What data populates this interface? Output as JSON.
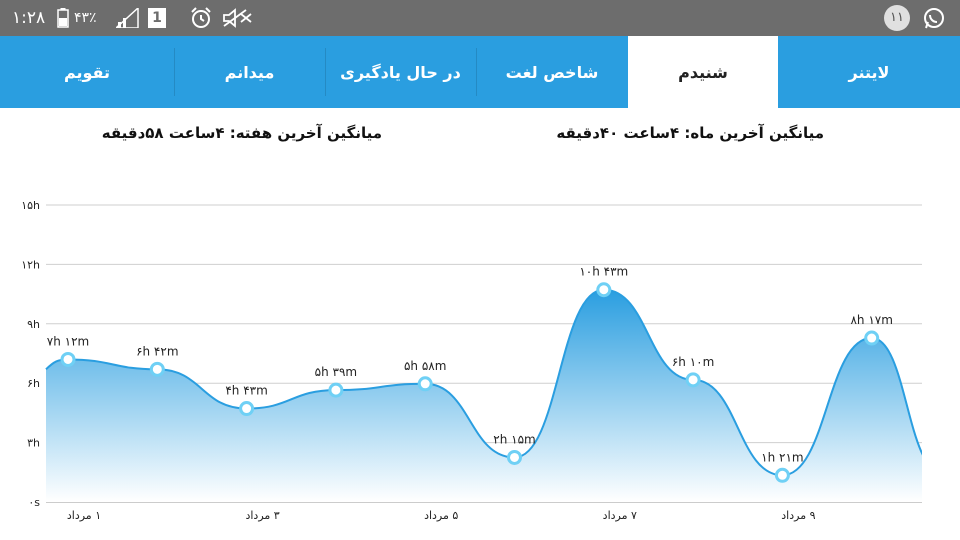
{
  "status_bar": {
    "time": "۱:۲۸",
    "battery": "۴۳٪",
    "sim": "1",
    "notification_count": "۱۱",
    "icons": [
      "battery-icon",
      "signal-icon",
      "sim-icon",
      "alarm-icon",
      "mute-icon",
      "notification-count-badge",
      "whatsapp-icon"
    ]
  },
  "tabs": [
    {
      "label": "لایتنر",
      "active": false
    },
    {
      "label": "شنیدم",
      "active": true
    },
    {
      "label": "شاخص لغت",
      "active": false
    },
    {
      "label": "در حال یادگیری",
      "active": false
    },
    {
      "label": "میدانم",
      "active": false
    },
    {
      "label": "تقویم",
      "active": false
    }
  ],
  "colors": {
    "tab_bar": "#2a9ee0",
    "accent": "#2a9ee0",
    "status_bar": "#6d6d6d"
  },
  "stats": {
    "month_avg": "میانگین آخرین ماه: ۴ساعت  ۴۰دقیقه",
    "week_avg": "میانگین آخرین هفته: ۴ساعت  ۵۸دقیقه"
  },
  "chart_data": {
    "type": "area",
    "title": "",
    "xlabel": "",
    "ylabel": "",
    "ylim": [
      0,
      15
    ],
    "y_ticks": [
      {
        "value": 0,
        "label": "۰s"
      },
      {
        "value": 3,
        "label": "۳h"
      },
      {
        "value": 6,
        "label": "۶h"
      },
      {
        "value": 9,
        "label": "۹h"
      },
      {
        "value": 12,
        "label": "۱۲h"
      },
      {
        "value": 15,
        "label": "۱۵h"
      }
    ],
    "x_ticks": [
      "۱ مرداد",
      "۳ مرداد",
      "۵ مرداد",
      "۷ مرداد",
      "۹ مرداد"
    ],
    "x_tick_days": [
      1,
      3,
      5,
      7,
      9
    ],
    "grid": true,
    "series": [
      {
        "points": [
          {
            "day": 1,
            "hours": 7.2,
            "label": "۷h ۱۲m"
          },
          {
            "day": 2,
            "hours": 6.7,
            "label": "۶h ۴۲m"
          },
          {
            "day": 3,
            "hours": 4.72,
            "label": "۴h ۴۳m"
          },
          {
            "day": 4,
            "hours": 5.65,
            "label": "۵h ۳۹m"
          },
          {
            "day": 5,
            "hours": 5.97,
            "label": "۵h ۵۸m"
          },
          {
            "day": 6,
            "hours": 2.25,
            "label": "۲h ۱۵m"
          },
          {
            "day": 7,
            "hours": 10.72,
            "label": "۱۰h ۴۳m"
          },
          {
            "day": 8,
            "hours": 6.17,
            "label": "۶h ۱۰m"
          },
          {
            "day": 9,
            "hours": 1.35,
            "label": "۱h ۲۱m"
          },
          {
            "day": 10,
            "hours": 8.28,
            "label": "۸h ۱۷m"
          }
        ]
      }
    ],
    "colors": {
      "line": "#2a9ee0",
      "fill_top": "#2a9ee0",
      "fill_bottom": "#ffffff",
      "grid": "#cfcfcf"
    }
  }
}
